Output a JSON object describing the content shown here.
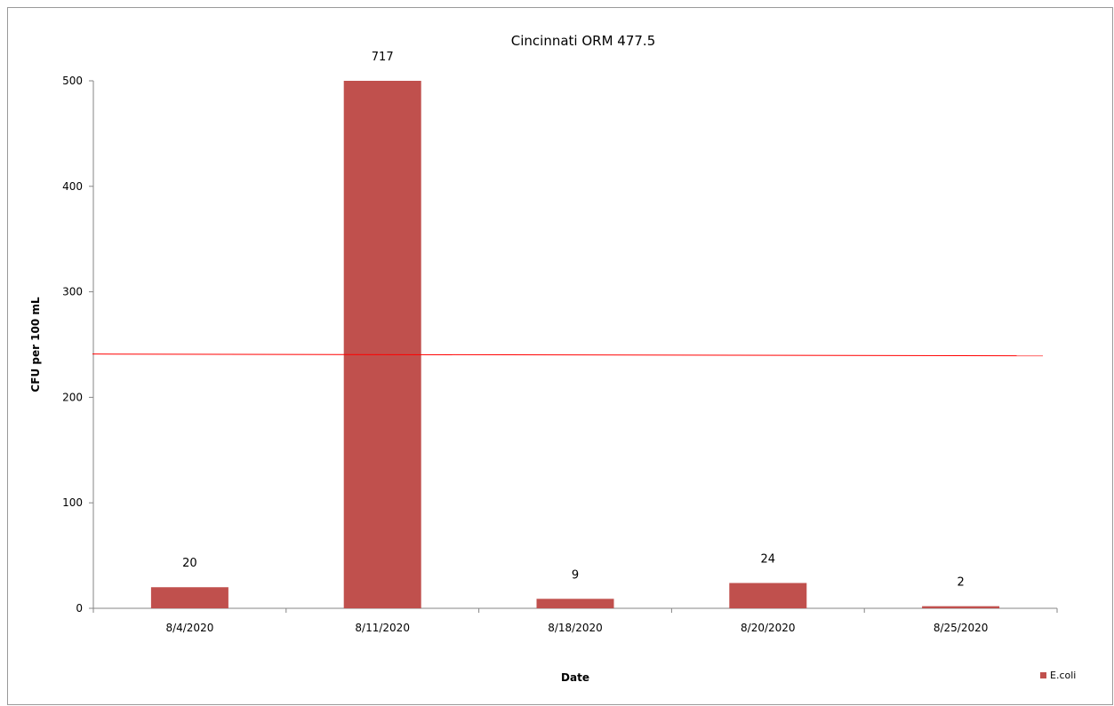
{
  "chart_data": {
    "type": "bar",
    "title": "Cincinnati ORM 477.5",
    "xlabel": "Date",
    "ylabel": "CFU per 100 mL",
    "categories": [
      "8/4/2020",
      "8/11/2020",
      "8/18/2020",
      "8/20/2020",
      "8/25/2020"
    ],
    "series": [
      {
        "name": "E.coli",
        "values": [
          20,
          717,
          9,
          24,
          2
        ],
        "data_labels": [
          "20",
          "717",
          "9",
          "24",
          "2"
        ],
        "color": "#c0504d"
      }
    ],
    "ylim": [
      0,
      500
    ],
    "yticks": [
      0,
      100,
      200,
      300,
      400,
      500
    ],
    "reference_line": {
      "value": 240,
      "color": "#ff0000"
    },
    "grid": false,
    "legend": "bottom-right"
  }
}
